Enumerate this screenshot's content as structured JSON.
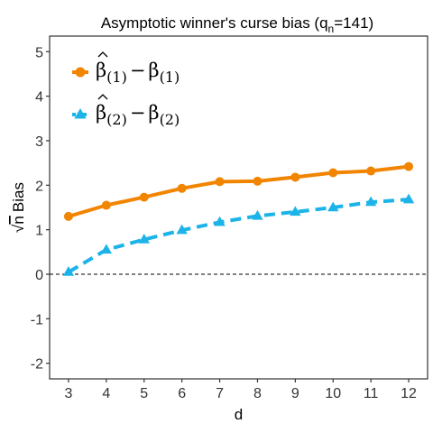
{
  "chart_data": {
    "type": "line",
    "title_main": "Asymptotic winner's curse bias (q",
    "title_sub": "n",
    "title_end": "=141)",
    "xlabel": "d",
    "ylabel_radical": "√",
    "ylabel_n": "n",
    "ylabel_text": "Bias",
    "x": [
      3,
      4,
      5,
      6,
      7,
      8,
      9,
      10,
      11,
      12
    ],
    "xlim": [
      2.5,
      12.5
    ],
    "ylim": [
      -2.35,
      5.35
    ],
    "yticks": [
      "-2",
      "-1",
      "0",
      "1",
      "2",
      "3",
      "4",
      "5"
    ],
    "reference_line": {
      "y": 0,
      "style": "dashed"
    },
    "legend_placement": "top-left",
    "series": [
      {
        "legend_hat": "β",
        "legend_sub1": "(1)",
        "legend_minus": "−",
        "legend_beta": "β",
        "legend_sub2": "(1)",
        "color": "#F28500",
        "marker": "circle",
        "line_style": "solid",
        "values": [
          1.3,
          1.55,
          1.73,
          1.93,
          2.08,
          2.09,
          2.18,
          2.28,
          2.32,
          2.42
        ]
      },
      {
        "legend_hat": "β",
        "legend_sub1": "(2)",
        "legend_minus": "−",
        "legend_beta": "β",
        "legend_sub2": "(2)",
        "color": "#1CB4E8",
        "marker": "triangle",
        "line_style": "dashed",
        "values": [
          0.05,
          0.55,
          0.78,
          0.99,
          1.17,
          1.31,
          1.4,
          1.5,
          1.62,
          1.68
        ]
      }
    ]
  }
}
